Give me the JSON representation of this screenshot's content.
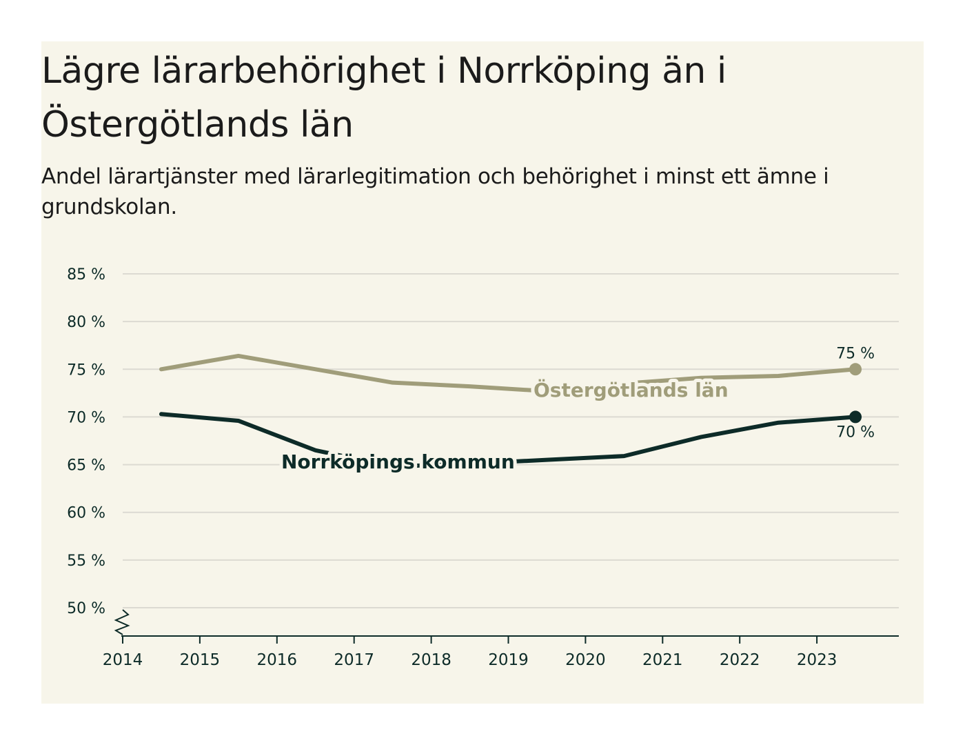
{
  "header": {
    "title": "Lägre lärarbehörighet i Norrköping än i Östergötlands län",
    "subtitle": "Andel lärartjänster med lärarlegitimation och behörighet i minst ett ämne i grundskolan."
  },
  "chart_data": {
    "type": "line",
    "title": "Lägre lärarbehörighet i Norrköping än i Östergötlands län",
    "subtitle": "Andel lärartjänster med lärarlegitimation och behörighet i minst ett ämne i grundskolan.",
    "xlabel": "",
    "ylabel": "",
    "x": [
      2014.5,
      2015.5,
      2016.5,
      2017.5,
      2018.5,
      2019.5,
      2020.5,
      2021.5,
      2022.5,
      2023.5
    ],
    "x_ticks": [
      2014,
      2015,
      2016,
      2017,
      2018,
      2019,
      2020,
      2021,
      2022,
      2023
    ],
    "x_tick_labels": [
      "2014",
      "2015",
      "2016",
      "2017",
      "2018",
      "2019",
      "2020",
      "2021",
      "2022",
      "2023"
    ],
    "xlim": [
      2014,
      2024
    ],
    "y_ticks": [
      50,
      55,
      60,
      65,
      70,
      75,
      80,
      85
    ],
    "y_tick_labels": [
      "50 %",
      "55 %",
      "60 %",
      "65 %",
      "70 %",
      "75 %",
      "80 %",
      "85 %"
    ],
    "ylim": [
      47,
      85
    ],
    "grid": true,
    "axis_break": true,
    "series": [
      {
        "name": "Östergötlands län",
        "color": "#a09d7a",
        "values": [
          75.0,
          76.4,
          75.0,
          73.6,
          73.2,
          72.7,
          73.5,
          74.1,
          74.3,
          75.0
        ],
        "end_label": "75 %"
      },
      {
        "name": "Norrköpings kommun",
        "color": "#0d2b28",
        "values": [
          70.3,
          69.6,
          66.5,
          64.8,
          65.1,
          65.5,
          65.9,
          67.9,
          69.4,
          70.0
        ],
        "end_label": "70 %"
      }
    ]
  }
}
